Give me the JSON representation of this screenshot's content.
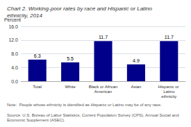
{
  "chart_data": {
    "type": "bar",
    "title": "Chart 2. Working-poor rates by race and Hispanic or Latino ethnicity, 2014",
    "ylabel": "Percent",
    "categories": [
      "Total",
      "White",
      "Black or African\nAmerican",
      "Asian",
      "Hispanic or Latino\nethnicity"
    ],
    "values": [
      6.3,
      5.5,
      11.7,
      4.9,
      11.7
    ],
    "color": "#00008B",
    "ylim": [
      0,
      16
    ],
    "yticks": [
      {
        "value": 0,
        "label": "0.0"
      },
      {
        "value": 4,
        "label": "4.0"
      },
      {
        "value": 8,
        "label": "8.0"
      },
      {
        "value": 12,
        "label": "12.0"
      },
      {
        "value": 16,
        "label": "16.0"
      }
    ],
    "grid": true,
    "data_labels": true,
    "annotations": [
      "Note:  People whose ethnicity is identified as Hispanic or Latino may be of any race.",
      "Source: U.S. Bureau of Labor Statistics, Current Population Survey (CPS), Annual Social and Economic Supplement (ASEC)."
    ]
  }
}
